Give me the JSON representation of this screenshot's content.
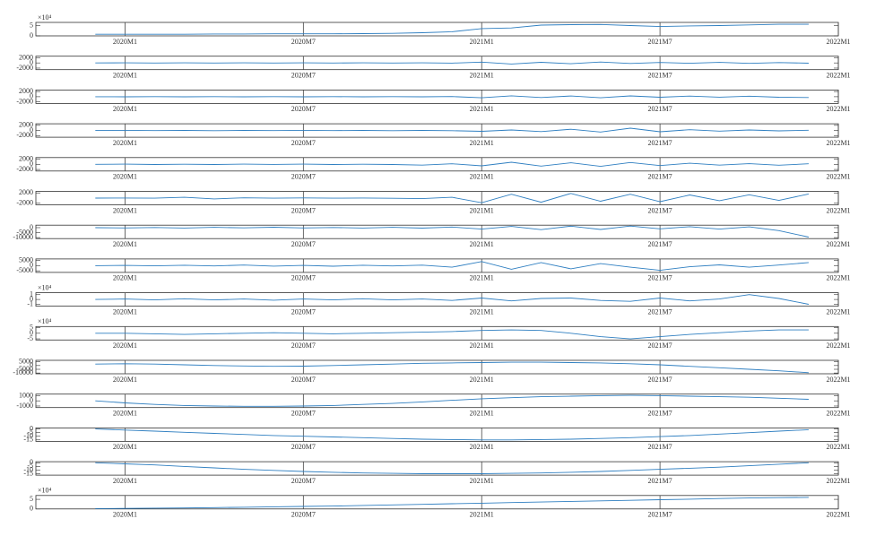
{
  "chart_data": [
    {
      "type": "line",
      "multiplier": "×10⁴",
      "x": [
        -1,
        0,
        1,
        2,
        3,
        4,
        5,
        6,
        7,
        8,
        9,
        10,
        11,
        12,
        13,
        14,
        15,
        16,
        17,
        18,
        19,
        20,
        21,
        22,
        23
      ],
      "values": [
        0.8,
        0.8,
        0.8,
        0.8,
        0.9,
        0.9,
        1,
        1,
        1,
        1.1,
        1.2,
        1.5,
        2,
        3.5,
        3.8,
        5.2,
        5.4,
        5.5,
        5,
        4.5,
        4.8,
        5,
        5.3,
        5.6,
        5.6
      ],
      "ylim": [
        0,
        6.5
      ],
      "yticks": [
        0,
        5
      ],
      "xlim": [
        -3,
        24
      ],
      "xticks": [
        {
          "value": 0,
          "label": "2020M1"
        },
        {
          "value": 6,
          "label": "2020M7"
        },
        {
          "value": 12,
          "label": "2021M1"
        },
        {
          "value": 18,
          "label": "2021M7"
        },
        {
          "value": 24,
          "label": "2022M1"
        }
      ],
      "color": "#2f7fc1"
    },
    {
      "type": "line",
      "x": [
        -1,
        0,
        1,
        2,
        3,
        4,
        5,
        6,
        7,
        8,
        9,
        10,
        11,
        12,
        13,
        14,
        15,
        16,
        17,
        18,
        19,
        20,
        21,
        22,
        23
      ],
      "values": [
        0,
        20,
        -30,
        40,
        -20,
        30,
        -40,
        20,
        -30,
        40,
        -20,
        30,
        -60,
        300,
        -400,
        250,
        -300,
        350,
        -200,
        180,
        -150,
        200,
        -180,
        150,
        -120
      ],
      "ylim": [
        -2600,
        2600
      ],
      "yticks": [
        -2000,
        0,
        2000
      ],
      "xlim": [
        -3,
        24
      ],
      "xticks": [
        {
          "value": 0,
          "label": "2020M1"
        },
        {
          "value": 6,
          "label": "2020M7"
        },
        {
          "value": 12,
          "label": "2021M1"
        },
        {
          "value": 18,
          "label": "2021M7"
        },
        {
          "value": 24,
          "label": "2022M1"
        }
      ],
      "color": "#2f7fc1"
    },
    {
      "type": "line",
      "x": [
        -1,
        0,
        1,
        2,
        3,
        4,
        5,
        6,
        7,
        8,
        9,
        10,
        11,
        12,
        13,
        14,
        15,
        16,
        17,
        18,
        19,
        20,
        21,
        22,
        23
      ],
      "values": [
        0,
        -30,
        40,
        -20,
        30,
        -40,
        20,
        -30,
        40,
        -20,
        30,
        -50,
        60,
        -400,
        350,
        -300,
        280,
        -420,
        300,
        -200,
        250,
        -180,
        200,
        -220,
        -300
      ],
      "ylim": [
        -2600,
        2600
      ],
      "yticks": [
        -2000,
        0,
        2000
      ],
      "xlim": [
        -3,
        24
      ],
      "xticks": [
        {
          "value": 0,
          "label": "2020M1"
        },
        {
          "value": 6,
          "label": "2020M7"
        },
        {
          "value": 12,
          "label": "2021M1"
        },
        {
          "value": 18,
          "label": "2021M7"
        },
        {
          "value": 24,
          "label": "2022M1"
        }
      ],
      "color": "#2f7fc1"
    },
    {
      "type": "line",
      "x": [
        -1,
        0,
        1,
        2,
        3,
        4,
        5,
        6,
        7,
        8,
        9,
        10,
        11,
        12,
        13,
        14,
        15,
        16,
        17,
        18,
        19,
        20,
        21,
        22,
        23
      ],
      "values": [
        0,
        60,
        -50,
        40,
        -60,
        50,
        -40,
        60,
        -50,
        40,
        -60,
        50,
        -80,
        -300,
        200,
        -400,
        500,
        -600,
        900,
        -500,
        300,
        -250,
        200,
        -150,
        100
      ],
      "ylim": [
        -2600,
        2600
      ],
      "yticks": [
        -2000,
        0,
        2000
      ],
      "xlim": [
        -3,
        24
      ],
      "xticks": [
        {
          "value": 0,
          "label": "2020M1"
        },
        {
          "value": 6,
          "label": "2020M7"
        },
        {
          "value": 12,
          "label": "2021M1"
        },
        {
          "value": 18,
          "label": "2021M7"
        },
        {
          "value": 24,
          "label": "2022M1"
        }
      ],
      "color": "#2f7fc1"
    },
    {
      "type": "line",
      "x": [
        -1,
        0,
        1,
        2,
        3,
        4,
        5,
        6,
        7,
        8,
        9,
        10,
        11,
        12,
        13,
        14,
        15,
        16,
        17,
        18,
        19,
        20,
        21,
        22,
        23
      ],
      "values": [
        0,
        80,
        -60,
        50,
        -80,
        60,
        -50,
        80,
        -60,
        50,
        -80,
        -300,
        200,
        -600,
        800,
        -700,
        600,
        -800,
        700,
        -500,
        400,
        -300,
        250,
        -350,
        200
      ],
      "ylim": [
        -2600,
        2600
      ],
      "yticks": [
        -2000,
        0,
        2000
      ],
      "xlim": [
        -3,
        24
      ],
      "xticks": [
        {
          "value": 0,
          "label": "2020M1"
        },
        {
          "value": 6,
          "label": "2020M7"
        },
        {
          "value": 12,
          "label": "2021M1"
        },
        {
          "value": 18,
          "label": "2021M7"
        },
        {
          "value": 24,
          "label": "2022M1"
        }
      ],
      "color": "#2f7fc1"
    },
    {
      "type": "line",
      "x": [
        -1,
        0,
        1,
        2,
        3,
        4,
        5,
        6,
        7,
        8,
        9,
        10,
        11,
        12,
        13,
        14,
        15,
        16,
        17,
        18,
        19,
        20,
        21,
        22,
        23
      ],
      "values": [
        0,
        50,
        -50,
        300,
        -300,
        100,
        -50,
        60,
        -50,
        40,
        -80,
        -200,
        300,
        -1800,
        1500,
        -1600,
        1800,
        -1200,
        1500,
        -1400,
        1200,
        -1000,
        1300,
        -900,
        1600
      ],
      "ylim": [
        -2600,
        2600
      ],
      "yticks": [
        -2000,
        2000
      ],
      "xlim": [
        -3,
        24
      ],
      "xticks": [
        {
          "value": 0,
          "label": "2020M1"
        },
        {
          "value": 6,
          "label": "2020M7"
        },
        {
          "value": 12,
          "label": "2021M1"
        },
        {
          "value": 18,
          "label": "2021M7"
        },
        {
          "value": 24,
          "label": "2022M1"
        }
      ],
      "color": "#2f7fc1"
    },
    {
      "type": "line",
      "x": [
        -1,
        0,
        1,
        2,
        3,
        4,
        5,
        6,
        7,
        8,
        9,
        10,
        11,
        12,
        13,
        14,
        15,
        16,
        17,
        18,
        19,
        20,
        21,
        22,
        23
      ],
      "values": [
        0,
        -300,
        200,
        -400,
        300,
        -200,
        400,
        -300,
        200,
        -400,
        300,
        -500,
        600,
        -1500,
        1200,
        -2000,
        1500,
        -1800,
        1600,
        -1200,
        1000,
        -1500,
        800,
        -3000,
        -9500
      ],
      "ylim": [
        -11000,
        2500
      ],
      "yticks": [
        -10000,
        -5000,
        0
      ],
      "xlim": [
        -3,
        24
      ],
      "xticks": [
        {
          "value": 0,
          "label": "2020M1"
        },
        {
          "value": 6,
          "label": "2020M7"
        },
        {
          "value": 12,
          "label": "2021M1"
        },
        {
          "value": 18,
          "label": "2021M7"
        },
        {
          "value": 24,
          "label": "2022M1"
        }
      ],
      "color": "#2f7fc1"
    },
    {
      "type": "line",
      "x": [
        -1,
        0,
        1,
        2,
        3,
        4,
        5,
        6,
        7,
        8,
        9,
        10,
        11,
        12,
        13,
        14,
        15,
        16,
        17,
        18,
        19,
        20,
        21,
        22,
        23
      ],
      "values": [
        0,
        300,
        -200,
        400,
        -300,
        600,
        -400,
        300,
        -500,
        400,
        -300,
        500,
        -1500,
        4000,
        -3500,
        3000,
        -3000,
        2000,
        -1500,
        -4500,
        -1000,
        800,
        -1500,
        600,
        3000
      ],
      "ylim": [
        -6500,
        6500
      ],
      "yticks": [
        -5000,
        0,
        5000
      ],
      "xlim": [
        -3,
        24
      ],
      "xticks": [
        {
          "value": 0,
          "label": "2020M1"
        },
        {
          "value": 6,
          "label": "2020M7"
        },
        {
          "value": 12,
          "label": "2021M1"
        },
        {
          "value": 18,
          "label": "2021M7"
        },
        {
          "value": 24,
          "label": "2022M1"
        }
      ],
      "color": "#2f7fc1"
    },
    {
      "type": "line",
      "multiplier": "×10⁴",
      "x": [
        -1,
        0,
        1,
        2,
        3,
        4,
        5,
        6,
        7,
        8,
        9,
        10,
        11,
        12,
        13,
        14,
        15,
        16,
        17,
        18,
        19,
        20,
        21,
        22,
        23
      ],
      "values": [
        0,
        0.1,
        -0.1,
        0.15,
        -0.1,
        0.1,
        -0.15,
        0.1,
        -0.1,
        0.15,
        -0.1,
        0.1,
        -0.2,
        0.3,
        -0.3,
        0.2,
        0.3,
        -0.2,
        -0.4,
        0.3,
        -0.3,
        0.1,
        1,
        0.2,
        -1
      ],
      "ylim": [
        -1.4,
        1.4
      ],
      "yticks": [
        -1,
        0,
        1
      ],
      "xlim": [
        -3,
        24
      ],
      "xticks": [
        {
          "value": 0,
          "label": "2020M1"
        },
        {
          "value": 6,
          "label": "2020M7"
        },
        {
          "value": 12,
          "label": "2021M1"
        },
        {
          "value": 18,
          "label": "2021M7"
        },
        {
          "value": 24,
          "label": "2022M1"
        }
      ],
      "color": "#2f7fc1"
    },
    {
      "type": "line",
      "multiplier": "×10⁴",
      "x": [
        -1,
        0,
        1,
        2,
        3,
        4,
        5,
        6,
        7,
        8,
        9,
        10,
        11,
        12,
        13,
        14,
        15,
        16,
        17,
        18,
        19,
        20,
        21,
        22,
        23
      ],
      "values": [
        0,
        0,
        -0.5,
        -1,
        -0.5,
        0,
        0.5,
        0,
        -0.5,
        0,
        0.5,
        1,
        1.5,
        2.5,
        3,
        2.5,
        0,
        -3,
        -5,
        -3,
        -1,
        0.5,
        2,
        3,
        3
      ],
      "ylim": [
        -6,
        6
      ],
      "yticks": [
        -5,
        0,
        5
      ],
      "xlim": [
        -3,
        24
      ],
      "xticks": [
        {
          "value": 0,
          "label": "2020M1"
        },
        {
          "value": 6,
          "label": "2020M7"
        },
        {
          "value": 12,
          "label": "2021M1"
        },
        {
          "value": 18,
          "label": "2021M7"
        },
        {
          "value": 24,
          "label": "2022M1"
        }
      ],
      "color": "#2f7fc1"
    },
    {
      "type": "line",
      "x": [
        -1,
        0,
        1,
        2,
        3,
        4,
        5,
        6,
        7,
        8,
        9,
        10,
        11,
        12,
        13,
        14,
        15,
        16,
        17,
        18,
        19,
        20,
        21,
        22,
        23
      ],
      "values": [
        2000,
        2500,
        2000,
        1000,
        0,
        -500,
        -1000,
        -800,
        0,
        1000,
        2000,
        3000,
        3500,
        4000,
        4500,
        4500,
        4000,
        3500,
        2500,
        1000,
        -1000,
        -3000,
        -5000,
        -7000,
        -9500
      ],
      "ylim": [
        -11000,
        7000
      ],
      "yticks": [
        -10000,
        -5000,
        0,
        5000
      ],
      "xlim": [
        -3,
        24
      ],
      "xticks": [
        {
          "value": 0,
          "label": "2020M1"
        },
        {
          "value": 6,
          "label": "2020M7"
        },
        {
          "value": 12,
          "label": "2021M1"
        },
        {
          "value": 18,
          "label": "2021M7"
        },
        {
          "value": 24,
          "label": "2022M1"
        }
      ],
      "color": "#2f7fc1"
    },
    {
      "type": "line",
      "x": [
        -1,
        0,
        1,
        2,
        3,
        4,
        5,
        6,
        7,
        8,
        9,
        10,
        11,
        12,
        13,
        14,
        15,
        16,
        17,
        18,
        19,
        20,
        21,
        22,
        23
      ],
      "values": [
        0,
        -400,
        -700,
        -900,
        -1000,
        -1050,
        -1050,
        -1000,
        -900,
        -700,
        -500,
        -200,
        100,
        400,
        600,
        800,
        900,
        1000,
        1050,
        1000,
        900,
        800,
        700,
        500,
        300
      ],
      "ylim": [
        -1300,
        1300
      ],
      "yticks": [
        -1000,
        0,
        1000
      ],
      "xlim": [
        -3,
        24
      ],
      "xticks": [
        {
          "value": 0,
          "label": "2020M1"
        },
        {
          "value": 6,
          "label": "2020M7"
        },
        {
          "value": 12,
          "label": "2021M1"
        },
        {
          "value": 18,
          "label": "2021M7"
        },
        {
          "value": 24,
          "label": "2022M1"
        }
      ],
      "color": "#2f7fc1"
    },
    {
      "type": "line",
      "x": [
        -1,
        0,
        1,
        2,
        3,
        4,
        5,
        6,
        7,
        8,
        9,
        10,
        11,
        12,
        13,
        14,
        15,
        16,
        17,
        18,
        19,
        20,
        21,
        22,
        23
      ],
      "values": [
        0,
        -1.5,
        -3,
        -4.5,
        -6,
        -7.5,
        -9,
        -10,
        -11,
        -12,
        -13,
        -14,
        -14.5,
        -15,
        -15,
        -14.5,
        -14,
        -13,
        -12,
        -10.5,
        -9,
        -7,
        -5,
        -3,
        -1
      ],
      "ylim": [
        -17,
        1.5
      ],
      "yticks": [
        -15,
        -10,
        -5,
        0
      ],
      "xlim": [
        -3,
        24
      ],
      "xticks": [
        {
          "value": 0,
          "label": "2020M1"
        },
        {
          "value": 6,
          "label": "2020M7"
        },
        {
          "value": 12,
          "label": "2021M1"
        },
        {
          "value": 18,
          "label": "2021M7"
        },
        {
          "value": 24,
          "label": "2022M1"
        }
      ],
      "color": "#2f7fc1"
    },
    {
      "type": "line",
      "x": [
        -1,
        0,
        1,
        2,
        3,
        4,
        5,
        6,
        7,
        8,
        9,
        10,
        11,
        12,
        13,
        14,
        15,
        16,
        17,
        18,
        19,
        20,
        21,
        22,
        23
      ],
      "values": [
        0,
        -1.5,
        -3,
        -5,
        -7,
        -9,
        -10.5,
        -12,
        -13,
        -14,
        -14.5,
        -15,
        -15,
        -15,
        -14.5,
        -14,
        -13,
        -12,
        -10.5,
        -9,
        -7.5,
        -6,
        -4,
        -2,
        0
      ],
      "ylim": [
        -17,
        1.5
      ],
      "yticks": [
        -15,
        -10,
        -5,
        0
      ],
      "xlim": [
        -3,
        24
      ],
      "xticks": [
        {
          "value": 0,
          "label": "2020M1"
        },
        {
          "value": 6,
          "label": "2020M7"
        },
        {
          "value": 12,
          "label": "2021M1"
        },
        {
          "value": 18,
          "label": "2021M7"
        },
        {
          "value": 24,
          "label": "2022M1"
        }
      ],
      "color": "#2f7fc1"
    },
    {
      "type": "line",
      "multiplier": "×10⁴",
      "x": [
        -1,
        0,
        1,
        2,
        3,
        4,
        5,
        6,
        7,
        8,
        9,
        10,
        11,
        12,
        13,
        14,
        15,
        16,
        17,
        18,
        19,
        20,
        21,
        22,
        23
      ],
      "values": [
        0.2,
        0.3,
        0.4,
        0.5,
        0.7,
        0.9,
        1.1,
        1.3,
        1.5,
        1.8,
        2.1,
        2.4,
        2.7,
        3,
        3.3,
        3.6,
        3.9,
        4.2,
        4.5,
        4.8,
        5.1,
        5.4,
        5.7,
        5.9,
        6
      ],
      "ylim": [
        0,
        7
      ],
      "yticks": [
        0,
        5
      ],
      "xlim": [
        -3,
        24
      ],
      "xticks": [
        {
          "value": 0,
          "label": "2020M1"
        },
        {
          "value": 6,
          "label": "2020M7"
        },
        {
          "value": 12,
          "label": "2021M1"
        },
        {
          "value": 18,
          "label": "2021M7"
        },
        {
          "value": 24,
          "label": "2022M1"
        }
      ],
      "color": "#2f7fc1"
    }
  ]
}
